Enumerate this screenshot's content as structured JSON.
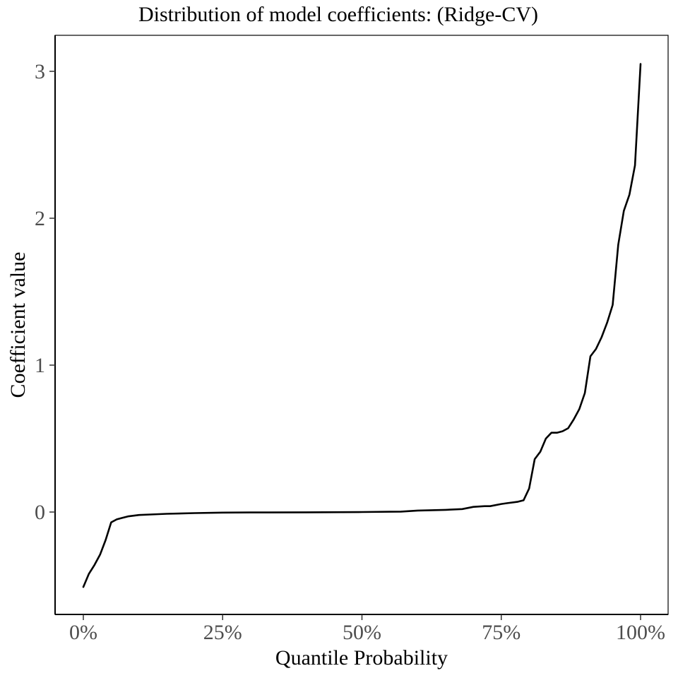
{
  "chart_data": {
    "type": "line",
    "title": "Distribution of model coefficients: (Ridge-CV)",
    "xlabel": "Quantile Probability",
    "ylabel": "Coefficient value",
    "xlim": [
      0,
      1
    ],
    "ylim": [
      -0.7,
      3.25
    ],
    "x_ticks": [
      {
        "value": 0.0,
        "label": "0%"
      },
      {
        "value": 0.25,
        "label": "25%"
      },
      {
        "value": 0.5,
        "label": "50%"
      },
      {
        "value": 0.75,
        "label": "75%"
      },
      {
        "value": 1.0,
        "label": "100%"
      }
    ],
    "y_ticks": [
      {
        "value": 0,
        "label": "0"
      },
      {
        "value": 1,
        "label": "1"
      },
      {
        "value": 2,
        "label": "2"
      },
      {
        "value": 3,
        "label": "3"
      }
    ],
    "grid": false,
    "line_color": "#000000",
    "series": [
      {
        "x": [
          0.0,
          0.01,
          0.02,
          0.03,
          0.04,
          0.05,
          0.06,
          0.07,
          0.08,
          0.09,
          0.1,
          0.12,
          0.15,
          0.2,
          0.25,
          0.3,
          0.4,
          0.5,
          0.55,
          0.57,
          0.6,
          0.65,
          0.68,
          0.7,
          0.72,
          0.73,
          0.75,
          0.76,
          0.78,
          0.79,
          0.8,
          0.81,
          0.82,
          0.83,
          0.84,
          0.85,
          0.86,
          0.87,
          0.88,
          0.89,
          0.9,
          0.91,
          0.92,
          0.93,
          0.94,
          0.95,
          0.96,
          0.97,
          0.98,
          0.99,
          1.0
        ],
        "y": [
          -0.51,
          -0.42,
          -0.36,
          -0.29,
          -0.19,
          -0.07,
          -0.05,
          -0.04,
          -0.03,
          -0.025,
          -0.02,
          -0.017,
          -0.012,
          -0.007,
          -0.004,
          -0.003,
          -0.002,
          0.0,
          0.002,
          0.003,
          0.01,
          0.015,
          0.02,
          0.035,
          0.04,
          0.04,
          0.055,
          0.06,
          0.07,
          0.08,
          0.16,
          0.36,
          0.41,
          0.5,
          0.54,
          0.54,
          0.55,
          0.57,
          0.63,
          0.7,
          0.81,
          1.06,
          1.11,
          1.19,
          1.29,
          1.41,
          1.82,
          2.05,
          2.16,
          2.36,
          3.05
        ]
      }
    ]
  }
}
